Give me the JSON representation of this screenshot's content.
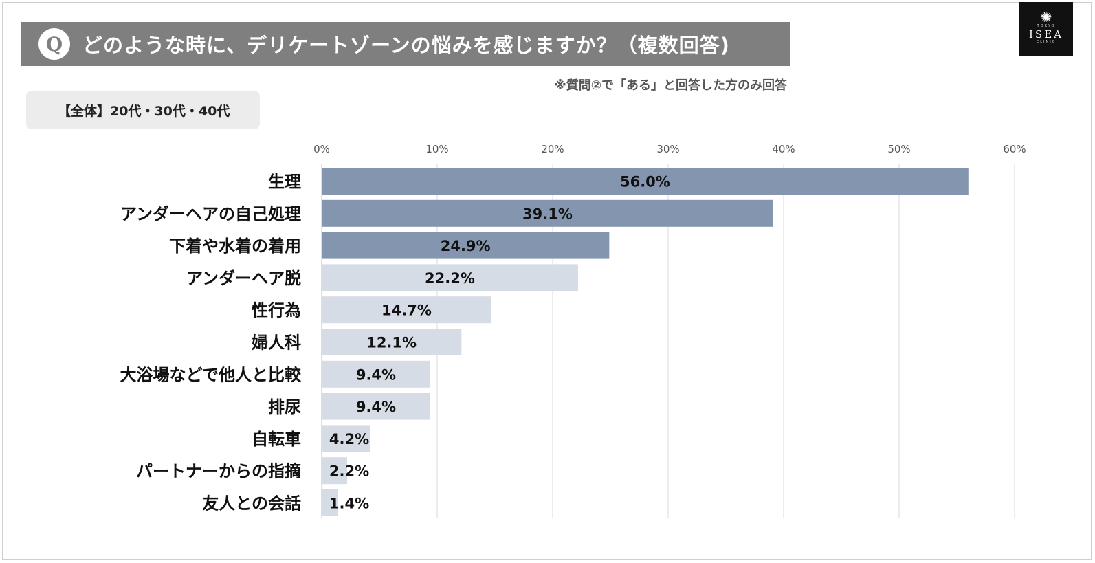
{
  "header": {
    "q_badge": "Q",
    "title": "どのような時に、デリケートゾーンの悩みを感じますか？（複数回答)"
  },
  "logo": {
    "mark": "✺",
    "sub_top": "TOKYO",
    "name": "ISEA",
    "sub_bottom": "CLINIC"
  },
  "note": "※質問②で「ある」と回答した方のみ回答",
  "segment_label": "【全体】20代・30代・40代",
  "colors": {
    "highlight_bar": "#8496af",
    "normal_bar": "#d6dce6",
    "grid": "#d9d9d9"
  },
  "chart_data": {
    "type": "bar",
    "orientation": "horizontal",
    "title": "どのような時に、デリケートゾーンの悩みを感じますか？（複数回答)",
    "xlim": [
      0,
      60
    ],
    "ticks": [
      0,
      10,
      20,
      30,
      40,
      50,
      60
    ],
    "tick_labels": [
      "0%",
      "10%",
      "20%",
      "30%",
      "40%",
      "50%",
      "60%"
    ],
    "highlight_top_n": 3,
    "categories": [
      "生理",
      "アンダーヘアの自己処理",
      "下着や水着の着用",
      "アンダーヘア脱",
      "性行為",
      "婦人科",
      "大浴場などで他人と比較",
      "排尿",
      "自転車",
      "パートナーからの指摘",
      "友人との会話"
    ],
    "values": [
      56.0,
      39.1,
      24.9,
      22.2,
      14.7,
      12.1,
      9.4,
      9.4,
      4.2,
      2.2,
      1.4
    ],
    "value_labels": [
      "56.0%",
      "39.1%",
      "24.9%",
      "22.2%",
      "14.7%",
      "12.1%",
      "9.4%",
      "9.4%",
      "4.2%",
      "2.2%",
      "1.4%"
    ]
  }
}
